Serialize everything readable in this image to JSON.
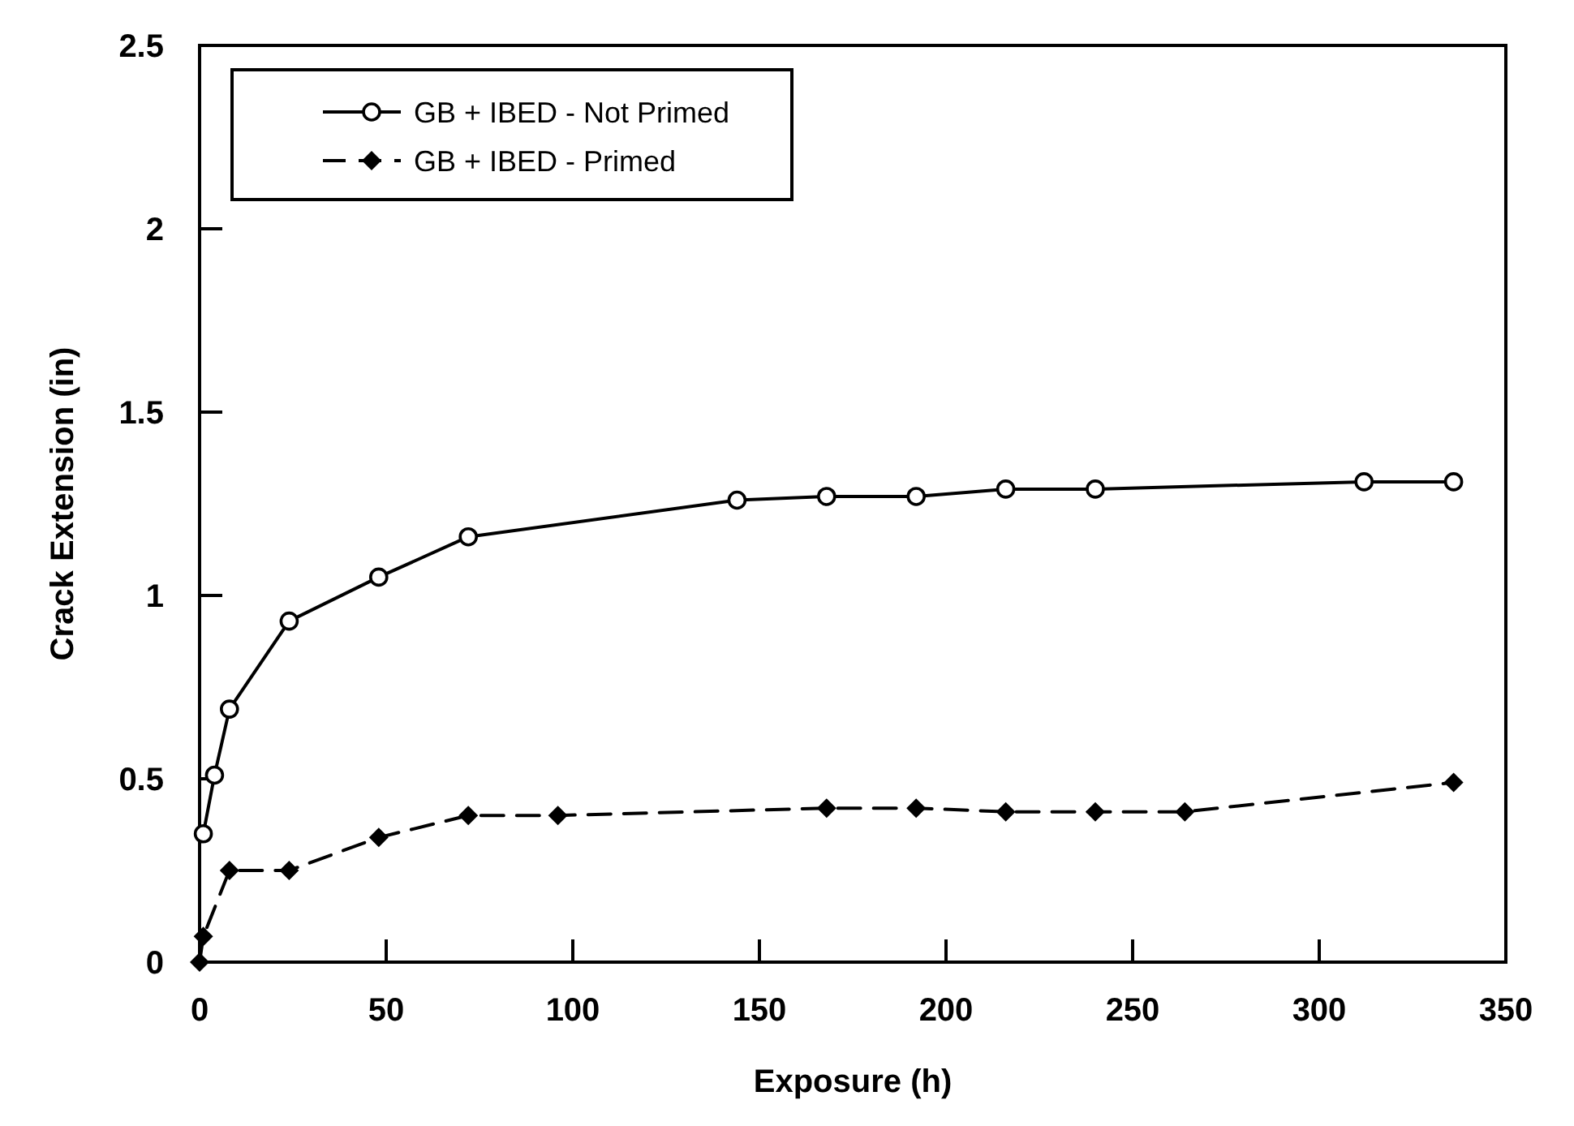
{
  "chart_data": {
    "type": "line",
    "xlabel": "Exposure (h)",
    "ylabel": "Crack Extension (in)",
    "xlim": [
      0,
      350
    ],
    "xticks": [
      0,
      50,
      100,
      150,
      200,
      250,
      300,
      350
    ],
    "ylim": [
      0,
      2.5
    ],
    "yticks": [
      0,
      0.5,
      1,
      1.5,
      2,
      2.5
    ],
    "grid": false,
    "legend": "top left",
    "series": [
      {
        "name": "GB + IBED - Not Primed",
        "color": "#000000",
        "marker": "circle",
        "line_style": "solid",
        "x": [
          1,
          4,
          8,
          24,
          48,
          72,
          144,
          168,
          192,
          216,
          240,
          312,
          336
        ],
        "values": [
          0.35,
          0.51,
          0.69,
          0.93,
          1.05,
          1.16,
          1.26,
          1.27,
          1.27,
          1.29,
          1.29,
          1.31,
          1.31
        ]
      },
      {
        "name": "GB + IBED - Primed",
        "color": "#000000",
        "marker": "diamond",
        "line_style": "dashed",
        "x": [
          0,
          1,
          8,
          24,
          48,
          72,
          96,
          168,
          192,
          216,
          240,
          264,
          336
        ],
        "values": [
          0,
          0.07,
          0.25,
          0.25,
          0.34,
          0.4,
          0.4,
          0.42,
          0.42,
          0.41,
          0.41,
          0.41,
          0.49
        ]
      }
    ]
  }
}
